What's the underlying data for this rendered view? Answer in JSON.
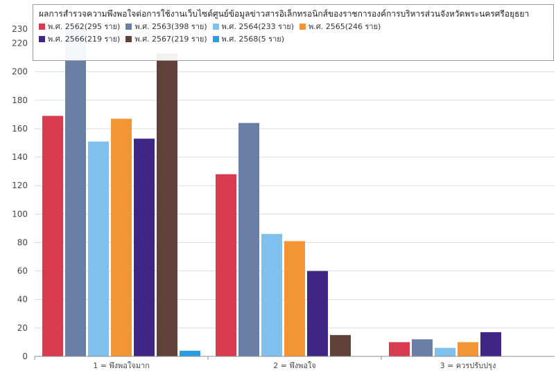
{
  "chart_data": {
    "type": "bar",
    "title": "ผลการสำรวจความพึงพอใจต่อการใช้งานเว็บไซต์ศูนย์ข้อมูลข่าวสารอิเล็กทรอนิกส์ของราชการองค์การบริหารส่วนจังหวัดพระนครศรีอยุธยา",
    "categories": [
      "1 = พึงพอใจมาก",
      "2 = พึงพอใจ",
      "3 = ควรปรับปรุง"
    ],
    "ylim": [
      0,
      230
    ],
    "yticks": [
      0,
      20,
      40,
      60,
      80,
      100,
      120,
      140,
      160,
      180,
      200,
      220,
      230
    ],
    "grid": true,
    "legend_position": "top",
    "series": [
      {
        "name": "พ.ศ. 2562(295 ราย)",
        "color": "#d83a4f",
        "values": [
          169,
          128,
          10
        ]
      },
      {
        "name": "พ.ศ. 2563(398 ราย)",
        "color": "#6a7fa6",
        "values": [
          230,
          164,
          12
        ]
      },
      {
        "name": "พ.ศ. 2564(233 ราย)",
        "color": "#7fc0ec",
        "values": [
          151,
          86,
          6
        ]
      },
      {
        "name": "พ.ศ. 2565(246 ราย)",
        "color": "#f39435",
        "values": [
          167,
          81,
          10
        ]
      },
      {
        "name": "พ.ศ. 2566(219 ราย)",
        "color": "#3f2585",
        "values": [
          153,
          60,
          17
        ]
      },
      {
        "name": "พ.ศ. 2567(219 ราย)",
        "color": "#60413a",
        "values": [
          213,
          15,
          0
        ]
      },
      {
        "name": "พ.ศ. 2568(5 ราย)",
        "color": "#2a9ee2",
        "values": [
          4,
          0,
          0
        ]
      }
    ]
  }
}
